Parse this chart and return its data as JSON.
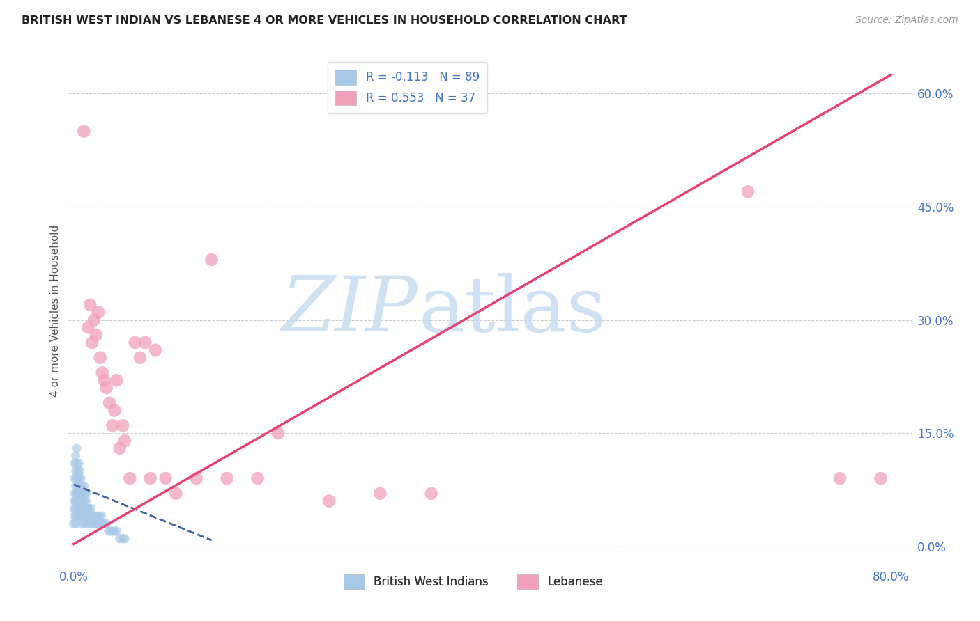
{
  "title": "BRITISH WEST INDIAN VS LEBANESE 4 OR MORE VEHICLES IN HOUSEHOLD CORRELATION CHART",
  "source": "Source: ZipAtlas.com",
  "ylabel_label": "4 or more Vehicles in Household",
  "ytick_values": [
    0.0,
    0.15,
    0.3,
    0.45,
    0.6
  ],
  "ytick_labels": [
    "0.0%",
    "15.0%",
    "30.0%",
    "45.0%",
    "60.0%"
  ],
  "xtick_values": [
    0.0,
    0.2,
    0.4,
    0.6,
    0.8
  ],
  "xtick_labels": [
    "0.0%",
    "",
    "",
    "",
    "80.0%"
  ],
  "xlim": [
    -0.005,
    0.82
  ],
  "ylim": [
    -0.025,
    0.65
  ],
  "legend_entry1_r": "R = -0.113",
  "legend_entry1_n": "N = 89",
  "legend_entry2_r": "R = 0.553",
  "legend_entry2_n": "N = 37",
  "legend_label1": "British West Indians",
  "legend_label2": "Lebanese",
  "color_blue": "#A8C8E8",
  "color_pink": "#F0A0B8",
  "line_blue_color": "#4060A0",
  "line_pink_color": "#E84070",
  "watermark_zip_color": "#C8DCF0",
  "watermark_atlas_color": "#C0D8F0",
  "blue_points_x": [
    0.0,
    0.001,
    0.001,
    0.001,
    0.002,
    0.002,
    0.002,
    0.002,
    0.003,
    0.003,
    0.003,
    0.003,
    0.004,
    0.004,
    0.004,
    0.005,
    0.005,
    0.005,
    0.005,
    0.006,
    0.006,
    0.006,
    0.007,
    0.007,
    0.007,
    0.008,
    0.008,
    0.008,
    0.009,
    0.009,
    0.01,
    0.01,
    0.01,
    0.011,
    0.011,
    0.012,
    0.012,
    0.013,
    0.013,
    0.014,
    0.015,
    0.015,
    0.016,
    0.017,
    0.018,
    0.019,
    0.02,
    0.021,
    0.022,
    0.023,
    0.024,
    0.025,
    0.026,
    0.027,
    0.028,
    0.03,
    0.032,
    0.034,
    0.036,
    0.038,
    0.04,
    0.042,
    0.045,
    0.048,
    0.05,
    0.0,
    0.001,
    0.001,
    0.002,
    0.002,
    0.003,
    0.003,
    0.004,
    0.004,
    0.005,
    0.005,
    0.006,
    0.006,
    0.007,
    0.007,
    0.008,
    0.008,
    0.009,
    0.009,
    0.01,
    0.01,
    0.011,
    0.012,
    0.013
  ],
  "blue_points_y": [
    0.05,
    0.07,
    0.09,
    0.11,
    0.06,
    0.08,
    0.1,
    0.12,
    0.07,
    0.09,
    0.11,
    0.13,
    0.06,
    0.08,
    0.1,
    0.05,
    0.07,
    0.09,
    0.11,
    0.06,
    0.08,
    0.1,
    0.05,
    0.07,
    0.09,
    0.04,
    0.06,
    0.08,
    0.05,
    0.07,
    0.04,
    0.06,
    0.08,
    0.05,
    0.07,
    0.04,
    0.06,
    0.05,
    0.07,
    0.04,
    0.03,
    0.05,
    0.04,
    0.05,
    0.03,
    0.04,
    0.03,
    0.04,
    0.03,
    0.04,
    0.03,
    0.04,
    0.03,
    0.04,
    0.03,
    0.03,
    0.03,
    0.02,
    0.02,
    0.02,
    0.02,
    0.02,
    0.01,
    0.01,
    0.01,
    0.03,
    0.04,
    0.06,
    0.03,
    0.05,
    0.04,
    0.06,
    0.05,
    0.07,
    0.04,
    0.06,
    0.05,
    0.07,
    0.04,
    0.06,
    0.03,
    0.05,
    0.04,
    0.06,
    0.03,
    0.05,
    0.04,
    0.03,
    0.04
  ],
  "pink_points_x": [
    0.01,
    0.014,
    0.016,
    0.018,
    0.02,
    0.022,
    0.024,
    0.026,
    0.028,
    0.03,
    0.032,
    0.035,
    0.038,
    0.04,
    0.042,
    0.045,
    0.048,
    0.05,
    0.055,
    0.06,
    0.065,
    0.07,
    0.075,
    0.08,
    0.09,
    0.1,
    0.12,
    0.135,
    0.15,
    0.18,
    0.2,
    0.25,
    0.3,
    0.35,
    0.66,
    0.75,
    0.79
  ],
  "pink_points_y": [
    0.55,
    0.29,
    0.32,
    0.27,
    0.3,
    0.28,
    0.31,
    0.25,
    0.23,
    0.22,
    0.21,
    0.19,
    0.16,
    0.18,
    0.22,
    0.13,
    0.16,
    0.14,
    0.09,
    0.27,
    0.25,
    0.27,
    0.09,
    0.26,
    0.09,
    0.07,
    0.09,
    0.38,
    0.09,
    0.09,
    0.15,
    0.06,
    0.07,
    0.07,
    0.47,
    0.09,
    0.09
  ],
  "blue_trendline_x": [
    0.0,
    0.135
  ],
  "blue_trendline_y": [
    0.082,
    0.008
  ],
  "pink_trendline_x": [
    0.0,
    0.8
  ],
  "pink_trendline_y": [
    0.003,
    0.625
  ]
}
